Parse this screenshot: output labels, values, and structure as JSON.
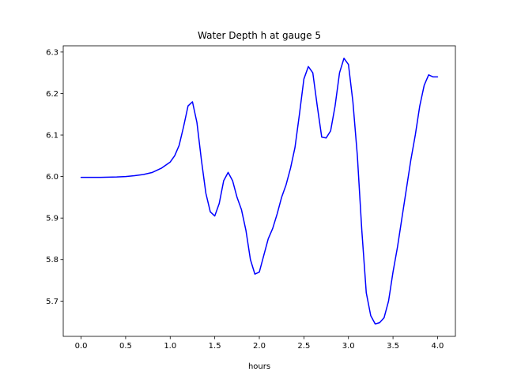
{
  "chart_data": {
    "type": "line",
    "title": "Water Depth h at gauge 5",
    "xlabel": "hours",
    "ylabel": "",
    "xlim": [
      -0.2,
      4.2
    ],
    "ylim": [
      5.615,
      6.315
    ],
    "xticks": [
      0.0,
      0.5,
      1.0,
      1.5,
      2.0,
      2.5,
      3.0,
      3.5,
      4.0
    ],
    "xtick_labels": [
      "0.0",
      "0.5",
      "1.0",
      "1.5",
      "2.0",
      "2.5",
      "3.0",
      "3.5",
      "4.0"
    ],
    "yticks": [
      5.7,
      5.8,
      5.9,
      6.0,
      6.1,
      6.2,
      6.3
    ],
    "ytick_labels": [
      "5.7",
      "5.8",
      "5.9",
      "6.0",
      "6.1",
      "6.2",
      "6.3"
    ],
    "grid": false,
    "series": [
      {
        "name": "",
        "color": "#0000ff",
        "x": [
          0.0,
          0.2,
          0.4,
          0.5,
          0.6,
          0.7,
          0.8,
          0.9,
          1.0,
          1.05,
          1.1,
          1.15,
          1.2,
          1.25,
          1.3,
          1.35,
          1.4,
          1.45,
          1.5,
          1.55,
          1.6,
          1.65,
          1.7,
          1.75,
          1.8,
          1.85,
          1.9,
          1.95,
          2.0,
          2.05,
          2.1,
          2.15,
          2.2,
          2.25,
          2.3,
          2.35,
          2.4,
          2.45,
          2.5,
          2.55,
          2.6,
          2.65,
          2.7,
          2.75,
          2.8,
          2.85,
          2.9,
          2.95,
          3.0,
          3.05,
          3.1,
          3.15,
          3.2,
          3.25,
          3.3,
          3.35,
          3.4,
          3.45,
          3.5,
          3.55,
          3.6,
          3.65,
          3.7,
          3.75,
          3.8,
          3.85,
          3.9,
          3.95,
          4.0
        ],
        "y": [
          5.998,
          5.998,
          5.999,
          6.0,
          6.002,
          6.005,
          6.01,
          6.02,
          6.035,
          6.05,
          6.075,
          6.12,
          6.17,
          6.18,
          6.13,
          6.04,
          5.96,
          5.915,
          5.905,
          5.935,
          5.99,
          6.01,
          5.99,
          5.95,
          5.92,
          5.87,
          5.8,
          5.765,
          5.77,
          5.81,
          5.85,
          5.875,
          5.91,
          5.95,
          5.98,
          6.02,
          6.07,
          6.15,
          6.235,
          6.265,
          6.25,
          6.17,
          6.095,
          6.093,
          6.11,
          6.17,
          6.25,
          6.285,
          6.27,
          6.18,
          6.05,
          5.87,
          5.72,
          5.665,
          5.645,
          5.648,
          5.66,
          5.7,
          5.77,
          5.83,
          5.9,
          5.97,
          6.04,
          6.1,
          6.17,
          6.22,
          6.245,
          6.24,
          6.24
        ]
      }
    ]
  }
}
